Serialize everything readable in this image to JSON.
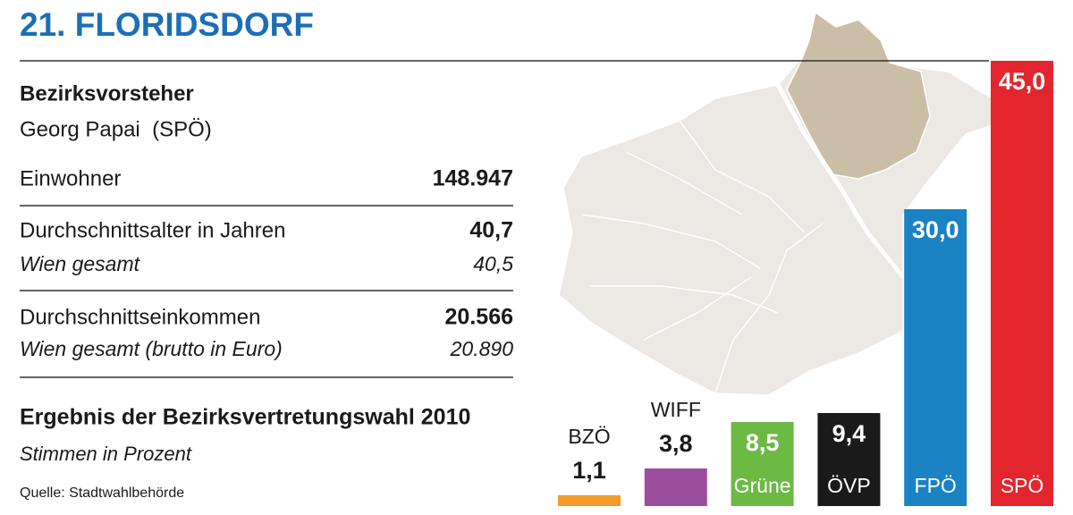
{
  "header": {
    "title": "21. FLORIDSDORF"
  },
  "facts": {
    "mayor_label": "Bezirksvorsteher",
    "mayor": "Georg Papai  (SPÖ)",
    "rows": [
      {
        "label": "Einwohner",
        "value": "148.947"
      },
      {
        "label": "Durchschnittsalter in Jahren",
        "value": "40,7",
        "sub_label": "Wien gesamt",
        "sub_value": "40,5"
      },
      {
        "label": "Durchschnittseinkommen",
        "value": "20.566",
        "sub_label": "Wien gesamt (brutto in Euro)",
        "sub_value": "20.890"
      }
    ]
  },
  "chart_data": {
    "type": "bar",
    "title": "Ergebnis der Bezirksvertretungswahl 2010",
    "subtitle": "Stimmen in Prozent",
    "source": "Quelle: Stadtwahlbehörde",
    "categories": [
      "BZÖ",
      "WIFF",
      "Grüne",
      "ÖVP",
      "FPÖ",
      "SPÖ"
    ],
    "values": [
      1.1,
      3.8,
      8.5,
      9.4,
      30.0,
      45.0
    ],
    "value_labels": [
      "1,1",
      "3,8",
      "8,5",
      "9,4",
      "30,0",
      "45,0"
    ],
    "colors": [
      "#f39a2c",
      "#9a4f9c",
      "#6cb944",
      "#1a1a1a",
      "#1b82c4",
      "#e3262e"
    ]
  }
}
